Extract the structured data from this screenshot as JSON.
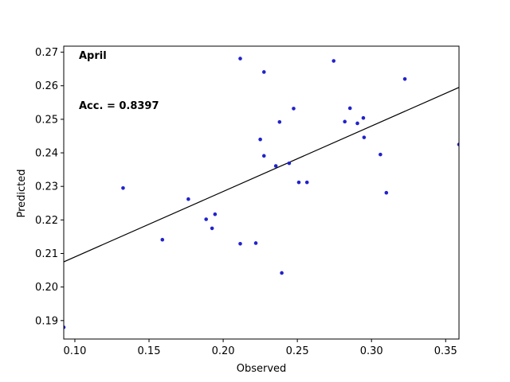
{
  "chart_data": {
    "type": "scatter",
    "title": "",
    "xlabel": "Observed",
    "ylabel": "Predicted",
    "xlim": [
      0.0925,
      0.359
    ],
    "ylim": [
      0.1845,
      0.2718
    ],
    "xticks": [
      {
        "value": 0.1,
        "label": "0.10"
      },
      {
        "value": 0.15,
        "label": "0.15"
      },
      {
        "value": 0.2,
        "label": "0.20"
      },
      {
        "value": 0.25,
        "label": "0.25"
      },
      {
        "value": 0.3,
        "label": "0.30"
      },
      {
        "value": 0.35,
        "label": "0.35"
      }
    ],
    "yticks": [
      {
        "value": 0.19,
        "label": "0.19"
      },
      {
        "value": 0.2,
        "label": "0.20"
      },
      {
        "value": 0.21,
        "label": "0.21"
      },
      {
        "value": 0.22,
        "label": "0.22"
      },
      {
        "value": 0.23,
        "label": "0.23"
      },
      {
        "value": 0.24,
        "label": "0.24"
      },
      {
        "value": 0.25,
        "label": "0.25"
      },
      {
        "value": 0.26,
        "label": "0.26"
      },
      {
        "value": 0.27,
        "label": "0.27"
      }
    ],
    "grid": false,
    "annotations": [
      {
        "text": "April",
        "position": "top-left"
      },
      {
        "text": "Acc. = 0.8397",
        "position": "upper-left"
      }
    ],
    "point_color": "#2222cc",
    "fit_line": {
      "color": "#000000",
      "points": [
        [
          0.0925,
          0.2075
        ],
        [
          0.359,
          0.2595
        ]
      ]
    },
    "points": [
      {
        "x": 0.0925,
        "y": 0.188
      },
      {
        "x": 0.1325,
        "y": 0.2295
      },
      {
        "x": 0.159,
        "y": 0.2141
      },
      {
        "x": 0.1765,
        "y": 0.2262
      },
      {
        "x": 0.1885,
        "y": 0.2202
      },
      {
        "x": 0.1925,
        "y": 0.2175
      },
      {
        "x": 0.1945,
        "y": 0.2217
      },
      {
        "x": 0.2115,
        "y": 0.2681
      },
      {
        "x": 0.2115,
        "y": 0.2129
      },
      {
        "x": 0.222,
        "y": 0.2131
      },
      {
        "x": 0.225,
        "y": 0.244
      },
      {
        "x": 0.2275,
        "y": 0.2641
      },
      {
        "x": 0.2275,
        "y": 0.2391
      },
      {
        "x": 0.2355,
        "y": 0.2361
      },
      {
        "x": 0.238,
        "y": 0.2492
      },
      {
        "x": 0.2395,
        "y": 0.2042
      },
      {
        "x": 0.2445,
        "y": 0.2369
      },
      {
        "x": 0.2475,
        "y": 0.2532
      },
      {
        "x": 0.251,
        "y": 0.2312
      },
      {
        "x": 0.2565,
        "y": 0.2312
      },
      {
        "x": 0.2745,
        "y": 0.2674
      },
      {
        "x": 0.282,
        "y": 0.2493
      },
      {
        "x": 0.2855,
        "y": 0.2533
      },
      {
        "x": 0.2905,
        "y": 0.2488
      },
      {
        "x": 0.2945,
        "y": 0.2504
      },
      {
        "x": 0.295,
        "y": 0.2446
      },
      {
        "x": 0.306,
        "y": 0.2395
      },
      {
        "x": 0.31,
        "y": 0.2281
      },
      {
        "x": 0.3225,
        "y": 0.262
      },
      {
        "x": 0.359,
        "y": 0.2425
      }
    ]
  }
}
